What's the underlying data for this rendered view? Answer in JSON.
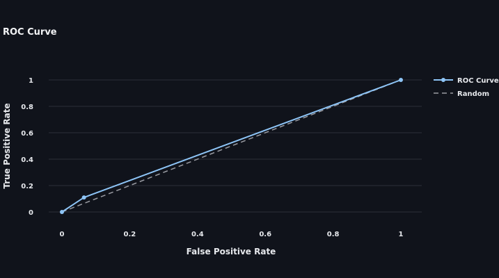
{
  "chart_data": {
    "type": "line",
    "title": "ROC Curve",
    "xlabel": "False Positive Rate",
    "ylabel": "True Positive Rate",
    "xlim": [
      0,
      1
    ],
    "ylim": [
      0,
      1
    ],
    "x_ticks": [
      "0",
      "0.2",
      "0.4",
      "0.6",
      "0.8",
      "1"
    ],
    "y_ticks": [
      "0",
      "0.2",
      "0.4",
      "0.6",
      "0.8",
      "1"
    ],
    "grid": "horizontal",
    "legend_position": "top-right",
    "series": [
      {
        "name": "ROC Curve",
        "x": [
          0,
          0.065,
          1
        ],
        "y": [
          0,
          0.11,
          1
        ],
        "color": "#8ec5f7",
        "style": "solid",
        "markers": true
      },
      {
        "name": "Random",
        "x": [
          0,
          1
        ],
        "y": [
          0,
          1
        ],
        "color": "#9a9ca3",
        "style": "dashed",
        "markers": false
      }
    ]
  }
}
